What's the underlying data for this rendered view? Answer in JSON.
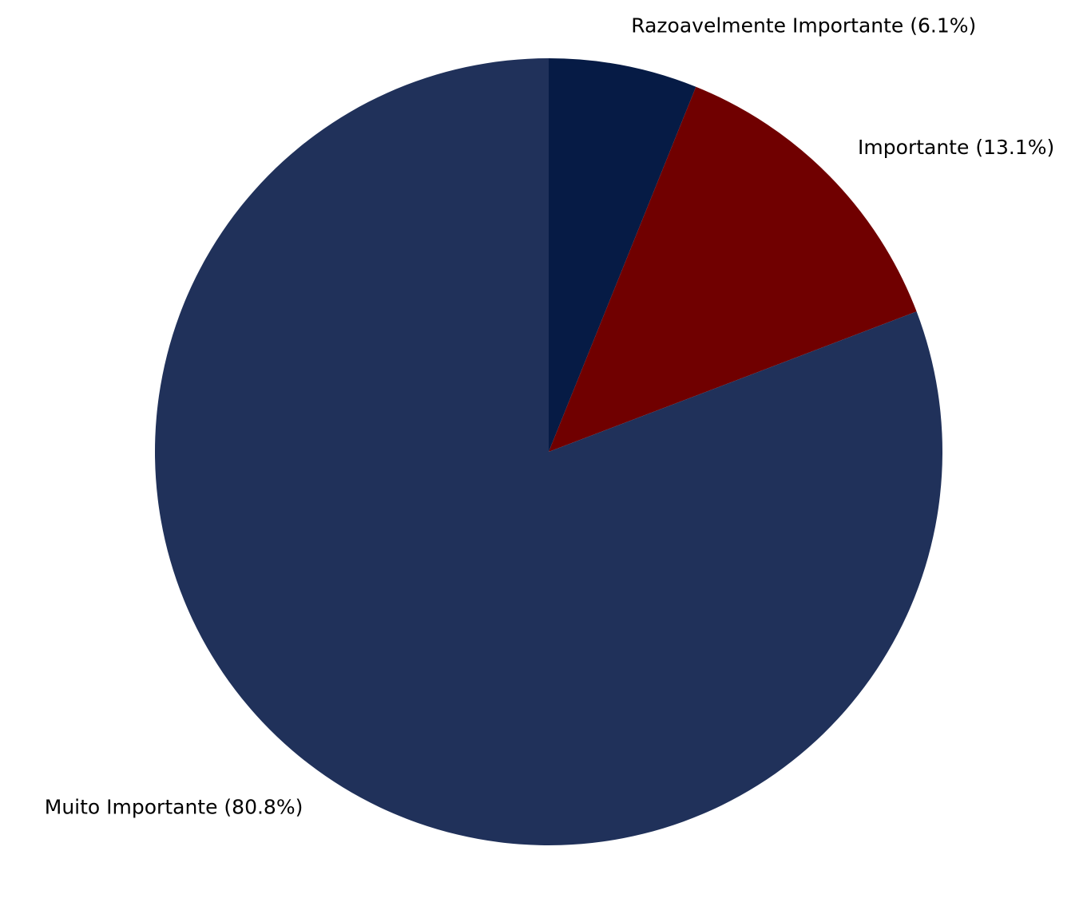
{
  "chart_data": {
    "type": "pie",
    "title": "",
    "start_angle": 90,
    "direction": "clockwise",
    "slices": [
      {
        "label": "Razoavelmente Importante (6.1%)",
        "category": "Razoavelmente Importante",
        "value": 6.1,
        "color": "#061b45"
      },
      {
        "label": "Importante (13.1%)",
        "category": "Importante",
        "value": 13.1,
        "color": "#700000"
      },
      {
        "label": "Muito Importante (80.8%)",
        "category": "Muito Importante",
        "value": 80.8,
        "color": "#20315a"
      }
    ]
  }
}
